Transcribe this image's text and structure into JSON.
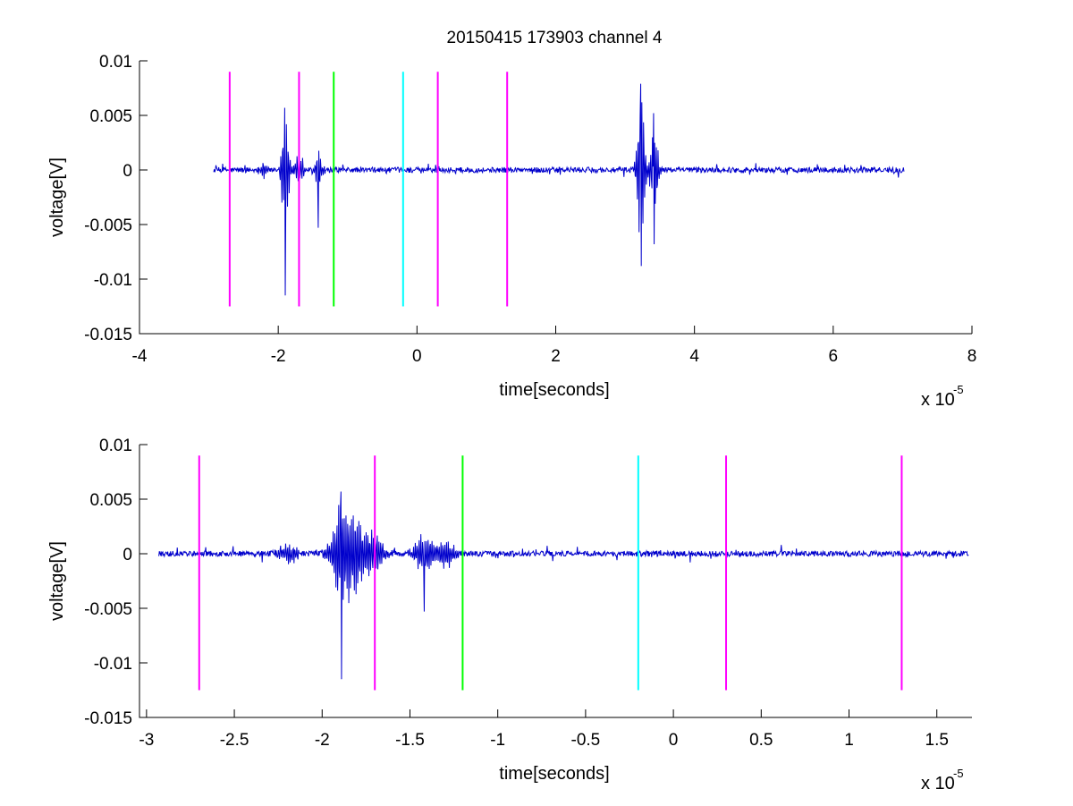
{
  "figure": {
    "title": "20150415 173903 channel 4"
  },
  "colors": {
    "signal": "#0000cc",
    "magenta": "#ff00ff",
    "green": "#00ff00",
    "cyan": "#00ffff",
    "axis": "#000000"
  },
  "chart_data": [
    {
      "type": "line",
      "title": "20150415 173903 channel 4",
      "xlabel": "time[seconds]",
      "ylabel": "voltage[V]",
      "x_scale_label": "x 10",
      "x_scale_exponent": "-5",
      "xlim": [
        -4,
        8
      ],
      "ylim": [
        -0.015,
        0.01
      ],
      "xticks": [
        -4,
        -2,
        0,
        2,
        4,
        6,
        8
      ],
      "xtick_labels": [
        "-4",
        "-2",
        "0",
        "2",
        "4",
        "6",
        "8"
      ],
      "yticks": [
        0.01,
        0.005,
        0,
        -0.005,
        -0.01,
        -0.015
      ],
      "ytick_labels": [
        "0.01",
        "0.005",
        "0",
        "-0.005",
        "-0.01",
        "-0.015"
      ],
      "grid": false,
      "series": [
        {
          "color": "#0000cc",
          "x_range": [
            -2.93,
            7.02
          ],
          "baseline_noise": 0.00025,
          "bursts": [
            {
              "x": -2.2,
              "amp": 0.0008
            },
            {
              "x": -1.9,
              "amp": 0.006,
              "min": -0.0115,
              "max": 0.0057
            },
            {
              "x": -1.7,
              "amp": 0.0016
            },
            {
              "x": -1.42,
              "amp": 0.002,
              "min": -0.0053
            },
            {
              "x": 3.23,
              "amp": 0.0078,
              "min": -0.0088,
              "max": 0.0079
            },
            {
              "x": 3.42,
              "amp": 0.005,
              "min": -0.0068,
              "max": 0.0052
            }
          ]
        }
      ],
      "markers": [
        {
          "x": -2.7,
          "color": "#ff00ff",
          "y_range": [
            -0.0125,
            0.009
          ]
        },
        {
          "x": -1.7,
          "color": "#ff00ff",
          "y_range": [
            -0.0125,
            0.009
          ]
        },
        {
          "x": -1.2,
          "color": "#00ff00",
          "y_range": [
            -0.0125,
            0.009
          ]
        },
        {
          "x": -0.2,
          "color": "#00ffff",
          "y_range": [
            -0.0125,
            0.009
          ]
        },
        {
          "x": 0.3,
          "color": "#ff00ff",
          "y_range": [
            -0.0125,
            0.009
          ]
        },
        {
          "x": 1.3,
          "color": "#ff00ff",
          "y_range": [
            -0.0125,
            0.009
          ]
        }
      ]
    },
    {
      "type": "line",
      "title": "",
      "xlabel": "time[seconds]",
      "ylabel": "voltage[V]",
      "x_scale_label": "x 10",
      "x_scale_exponent": "-5",
      "xlim": [
        -3.04,
        1.7
      ],
      "ylim": [
        -0.015,
        0.01
      ],
      "xticks": [
        -3,
        -2.5,
        -2,
        -1.5,
        -1,
        -0.5,
        0,
        0.5,
        1,
        1.5
      ],
      "xtick_labels": [
        "-3",
        "-2.5",
        "-2",
        "-1.5",
        "-1",
        "-0.5",
        "0",
        "0.5",
        "1",
        "1.5"
      ],
      "yticks": [
        0.01,
        0.005,
        0,
        -0.005,
        -0.01,
        -0.015
      ],
      "ytick_labels": [
        "0.01",
        "0.005",
        "0",
        "-0.005",
        "-0.01",
        "-0.015"
      ],
      "grid": false,
      "series": [
        {
          "color": "#0000cc",
          "x_range": [
            -2.93,
            1.68
          ],
          "baseline_noise": 0.00025,
          "bursts": [
            {
              "x": -2.19,
              "amp": 0.0009
            },
            {
              "x": -1.89,
              "amp": 0.005,
              "min": -0.0115,
              "max": 0.0057
            },
            {
              "x": -1.8,
              "amp": 0.0035
            },
            {
              "x": -1.7,
              "amp": 0.0018
            },
            {
              "x": -1.42,
              "amp": 0.002,
              "min": -0.0053
            },
            {
              "x": -1.3,
              "amp": 0.0014
            }
          ]
        }
      ],
      "markers": [
        {
          "x": -2.7,
          "color": "#ff00ff",
          "y_range": [
            -0.0125,
            0.009
          ]
        },
        {
          "x": -1.7,
          "color": "#ff00ff",
          "y_range": [
            -0.0125,
            0.009
          ]
        },
        {
          "x": -1.2,
          "color": "#00ff00",
          "y_range": [
            -0.0125,
            0.009
          ]
        },
        {
          "x": -0.2,
          "color": "#00ffff",
          "y_range": [
            -0.0125,
            0.009
          ]
        },
        {
          "x": 0.3,
          "color": "#ff00ff",
          "y_range": [
            -0.0125,
            0.009
          ]
        },
        {
          "x": 1.3,
          "color": "#ff00ff",
          "y_range": [
            -0.0125,
            0.009
          ]
        }
      ]
    }
  ]
}
